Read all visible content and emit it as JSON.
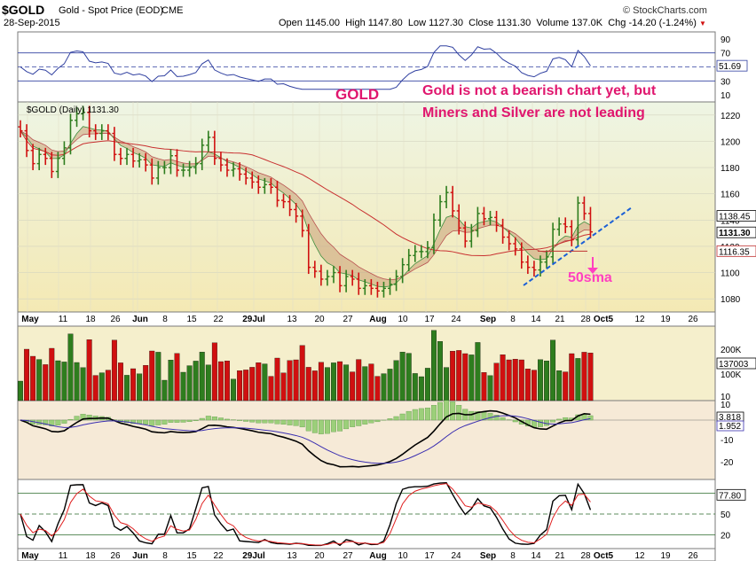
{
  "header": {
    "symbol": "$GOLD",
    "name": "Gold - Spot Price (EOD)",
    "exchange": "CME",
    "date": "28-Sep-2015",
    "copyright": "© StockCharts.com",
    "quote": {
      "open_label": "Open",
      "open": "1145.00",
      "high_label": "High",
      "high": "1147.80",
      "low_label": "Low",
      "low": "1127.30",
      "close_label": "Close",
      "close": "1131.30",
      "volume_label": "Volume",
      "volume": "137.0K",
      "chg_label": "Chg",
      "chg": "-14.20 (-1.24%)",
      "chg_marker": "▼"
    }
  },
  "annotations": {
    "gold": "GOLD",
    "comment_line1": "Gold is not a bearish chart yet, but",
    "comment_line2": "Miners and Silver are not leading",
    "sma": "50sma"
  },
  "colors": {
    "up": "#2e7d1e",
    "down": "#d01010",
    "annotation": "#e0166e",
    "sma_arrow": "#ff40c0",
    "trendline": "#1a5fd6",
    "rsi_line": "#3040a0",
    "ma_line": "#c83030"
  },
  "chart_data": [
    {
      "type": "line",
      "name": "RSI panel",
      "y_ticks": [
        "90",
        "70",
        "50",
        "30",
        "10"
      ],
      "last_value_label": "51.69",
      "ylim": [
        0,
        100
      ]
    },
    {
      "type": "candlestick",
      "name": "price panel",
      "legend": "$GOLD (Daily) 1131.30",
      "y_ticks": [
        "1220",
        "1200",
        "1180",
        "1160",
        "1140",
        "1120",
        "1100",
        "1080"
      ],
      "ylim": [
        1070,
        1230
      ],
      "price_labels": [
        "1138.45",
        "1131.30",
        "1116.35"
      ],
      "x_tick_labels": [
        "May",
        "11",
        "18",
        "26",
        "Jun",
        "8",
        "15",
        "22",
        "29Jul",
        "6",
        "13",
        "20",
        "27",
        "Aug",
        "10",
        "17",
        "24",
        "Sep",
        "8",
        "14",
        "21",
        "28",
        "Oct",
        "5",
        "12",
        "19",
        "26"
      ],
      "x_month_labels": [
        "May",
        "Jun",
        "Jul",
        "Aug",
        "Sep",
        "Oct"
      ],
      "close": [
        1208,
        1193,
        1183,
        1190,
        1187,
        1177,
        1187,
        1195,
        1216,
        1221,
        1222,
        1208,
        1206,
        1208,
        1206,
        1190,
        1187,
        1190,
        1185,
        1186,
        1182,
        1172,
        1180,
        1180,
        1189,
        1178,
        1178,
        1180,
        1183,
        1197,
        1203,
        1187,
        1182,
        1178,
        1179,
        1175,
        1172,
        1169,
        1165,
        1167,
        1165,
        1155,
        1154,
        1148,
        1143,
        1132,
        1104,
        1101,
        1095,
        1097,
        1100,
        1090,
        1097,
        1095,
        1088,
        1090,
        1088,
        1086,
        1088,
        1091,
        1097,
        1106,
        1113,
        1116,
        1116,
        1119,
        1140,
        1154,
        1161,
        1147,
        1134,
        1124,
        1132,
        1145,
        1141,
        1142,
        1136,
        1127,
        1122,
        1118,
        1108,
        1104,
        1102,
        1108,
        1112,
        1133,
        1137,
        1135,
        1125,
        1153,
        1145,
        1131
      ]
    },
    {
      "type": "bar",
      "name": "volume panel",
      "y_ticks": [
        "200K",
        "100K",
        "10"
      ],
      "last_value_label": "137003"
    },
    {
      "type": "line",
      "name": "MACD panel",
      "y_ticks": [
        "10",
        "-10",
        "-20"
      ],
      "value_labels": [
        "3.818",
        "1.952"
      ]
    },
    {
      "type": "line",
      "name": "stochastic panel",
      "y_ticks": [
        "50",
        "20"
      ],
      "last_value_label": "77.80"
    }
  ]
}
